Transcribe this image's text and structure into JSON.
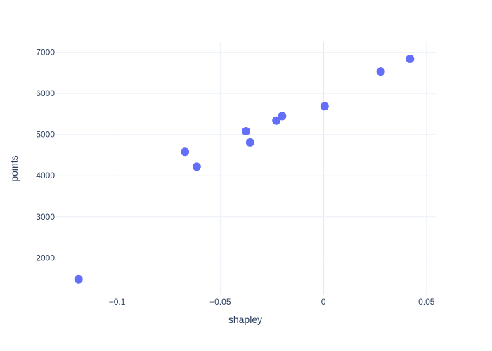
{
  "chart_data": {
    "type": "scatter",
    "xlabel": "shapley",
    "ylabel": "points",
    "xlim": [
      -0.1295,
      0.0545
    ],
    "ylim": [
      1100,
      7250
    ],
    "x_ticks": [
      -0.1,
      -0.05,
      0,
      0.05
    ],
    "x_tick_labels": [
      "−0.1",
      "−0.05",
      "0",
      "0.05"
    ],
    "y_ticks": [
      2000,
      3000,
      4000,
      5000,
      6000,
      7000
    ],
    "y_tick_labels": [
      "2000",
      "3000",
      "4000",
      "5000",
      "6000",
      "7000"
    ],
    "grid": true,
    "zero_line_x": true,
    "marker_color": "#636efa",
    "gridline_color": "#ebf0f8",
    "zero_line_color": "#e5e7f2",
    "points": [
      {
        "x": -0.1187,
        "y": 1480
      },
      {
        "x": -0.0671,
        "y": 4580
      },
      {
        "x": -0.0614,
        "y": 4220
      },
      {
        "x": -0.0375,
        "y": 5080
      },
      {
        "x": -0.0355,
        "y": 4810
      },
      {
        "x": -0.0228,
        "y": 5340
      },
      {
        "x": -0.02,
        "y": 5450
      },
      {
        "x": 0.0006,
        "y": 5690
      },
      {
        "x": 0.0278,
        "y": 6530
      },
      {
        "x": 0.042,
        "y": 6840
      }
    ]
  }
}
